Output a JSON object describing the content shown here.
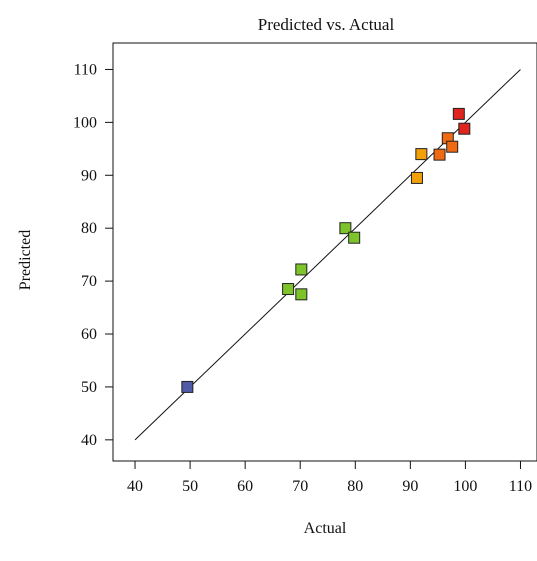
{
  "chart_data": {
    "type": "scatter",
    "title": "Predicted vs. Actual",
    "xlabel": "Actual",
    "ylabel": "Predicted",
    "xlim": [
      36,
      113
    ],
    "ylim": [
      36,
      115
    ],
    "xticks": [
      40,
      50,
      60,
      70,
      80,
      90,
      100,
      110
    ],
    "yticks": [
      40,
      50,
      60,
      70,
      80,
      90,
      100,
      110
    ],
    "grid": false,
    "reference_line": {
      "x": [
        40,
        110
      ],
      "y": [
        40,
        110
      ]
    },
    "points": [
      {
        "x": 49.5,
        "y": 50.0,
        "color": "#4f5aa8"
      },
      {
        "x": 67.8,
        "y": 68.5,
        "color": "#7dc42a"
      },
      {
        "x": 70.2,
        "y": 72.2,
        "color": "#7dc42a"
      },
      {
        "x": 70.2,
        "y": 67.5,
        "color": "#7dc42a"
      },
      {
        "x": 78.2,
        "y": 80.0,
        "color": "#7dc42a"
      },
      {
        "x": 79.8,
        "y": 78.2,
        "color": "#7dc42a"
      },
      {
        "x": 91.2,
        "y": 89.5,
        "color": "#f2a007"
      },
      {
        "x": 92.0,
        "y": 94.0,
        "color": "#f2a007"
      },
      {
        "x": 95.3,
        "y": 93.9,
        "color": "#f06a14"
      },
      {
        "x": 96.8,
        "y": 97.0,
        "color": "#f06a14"
      },
      {
        "x": 97.6,
        "y": 95.4,
        "color": "#f06a14"
      },
      {
        "x": 98.8,
        "y": 101.6,
        "color": "#e0241e"
      },
      {
        "x": 99.8,
        "y": 98.8,
        "color": "#e0241e"
      }
    ]
  }
}
